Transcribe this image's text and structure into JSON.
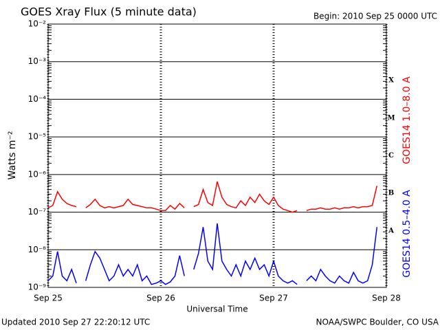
{
  "chart_data": {
    "type": "line",
    "title": "GOES Xray Flux (5 minute data)",
    "begin": "Begin:  2010 Sep 25 0000 UTC",
    "y_label": "Watts m⁻²",
    "x_label": "Universal Time",
    "updated": "Updated 2010 Sep 27 22:20:12 UTC",
    "credit": "NOAA/SWPC Boulder, CO USA",
    "log_y": true,
    "grid": true,
    "ylim": [
      1e-09,
      0.01
    ],
    "yticks": [
      {
        "value": 1e-09,
        "label": "10⁻⁹"
      },
      {
        "value": 1e-08,
        "label": "10⁻⁸"
      },
      {
        "value": 1e-07,
        "label": "10⁻⁷"
      },
      {
        "value": 1e-06,
        "label": "10⁻⁶"
      },
      {
        "value": 1e-05,
        "label": "10⁻⁵"
      },
      {
        "value": 0.0001,
        "label": "10⁻⁴"
      },
      {
        "value": 0.001,
        "label": "10⁻³"
      },
      {
        "value": 0.01,
        "label": "10⁻²"
      }
    ],
    "xlim": [
      0,
      72
    ],
    "xticks": [
      {
        "value": 0,
        "label": "Sep 25"
      },
      {
        "value": 24,
        "label": "Sep 26"
      },
      {
        "value": 48,
        "label": "Sep 27"
      },
      {
        "value": 72,
        "label": "Sep 28"
      }
    ],
    "class_labels": [
      "A",
      "B",
      "C",
      "M",
      "X"
    ],
    "x": [
      0,
      1,
      2,
      3,
      4,
      5,
      6,
      7,
      8,
      9,
      10,
      11,
      12,
      13,
      14,
      15,
      16,
      17,
      18,
      19,
      20,
      21,
      22,
      23,
      24,
      25,
      26,
      27,
      28,
      29,
      30,
      31,
      32,
      33,
      34,
      35,
      36,
      37,
      38,
      39,
      40,
      41,
      42,
      43,
      44,
      45,
      46,
      47,
      48,
      49,
      50,
      51,
      52,
      53,
      54,
      55,
      56,
      57,
      58,
      59,
      60,
      61,
      62,
      63,
      64,
      65,
      66,
      67,
      68,
      69,
      70
    ],
    "series": [
      {
        "name": "GOES14 1.0–8.0 A",
        "color": "#ff0000",
        "values": [
          1.3e-07,
          1.5e-07,
          3.5e-07,
          2.2e-07,
          1.7e-07,
          1.5e-07,
          1.4e-07,
          null,
          1.3e-07,
          1.6e-07,
          2.2e-07,
          1.5e-07,
          1.3e-07,
          1.4e-07,
          1.3e-07,
          1.4e-07,
          1.5e-07,
          2.2e-07,
          1.6e-07,
          1.5e-07,
          1.4e-07,
          1.3e-07,
          1.3e-07,
          1.2e-07,
          1.1e-07,
          1.1e-07,
          1.5e-07,
          1.2e-07,
          1.7e-07,
          1.3e-07,
          null,
          1.4e-07,
          1.6e-07,
          4e-07,
          1.8e-07,
          1.5e-07,
          6.5e-07,
          2.5e-07,
          1.6e-07,
          1.4e-07,
          1.3e-07,
          2e-07,
          1.5e-07,
          2.5e-07,
          1.8e-07,
          3e-07,
          2e-07,
          1.6e-07,
          2.5e-07,
          1.5e-07,
          1.2e-07,
          1.1e-07,
          1e-07,
          1.1e-07,
          null,
          1.1e-07,
          1.2e-07,
          1.2e-07,
          1.3e-07,
          1.2e-07,
          1.2e-07,
          1.3e-07,
          1.2e-07,
          1.3e-07,
          1.3e-07,
          1.4e-07,
          1.3e-07,
          1.4e-07,
          1.4e-07,
          1.5e-07,
          5e-07
        ]
      },
      {
        "name": "GOES14 0.5–4.0 A",
        "color": "#0000ff",
        "values": [
          1.5e-09,
          2e-09,
          9e-09,
          2e-09,
          1.5e-09,
          3e-09,
          1.3e-09,
          null,
          1.5e-09,
          4e-09,
          9e-09,
          6e-09,
          3e-09,
          1.5e-09,
          2e-09,
          4e-09,
          2e-09,
          3e-09,
          2e-09,
          4e-09,
          1.5e-09,
          2e-09,
          1.2e-09,
          1.3e-09,
          1.5e-09,
          1.2e-09,
          1.4e-09,
          2e-09,
          7e-09,
          2e-09,
          null,
          3e-09,
          8e-09,
          4e-08,
          5e-09,
          3e-09,
          5e-08,
          5e-09,
          3e-09,
          2e-09,
          4e-09,
          2e-09,
          5e-09,
          3e-09,
          6e-09,
          3e-09,
          4e-09,
          2e-09,
          5e-09,
          2e-09,
          1.5e-09,
          1.3e-09,
          1.5e-09,
          1.2e-09,
          null,
          1.5e-09,
          2e-09,
          1.5e-09,
          3e-09,
          2e-09,
          1.5e-09,
          1.3e-09,
          2e-09,
          1.5e-09,
          1.3e-09,
          2.5e-09,
          1.5e-09,
          1.3e-09,
          1.5e-09,
          4e-09,
          4e-08
        ]
      }
    ]
  }
}
